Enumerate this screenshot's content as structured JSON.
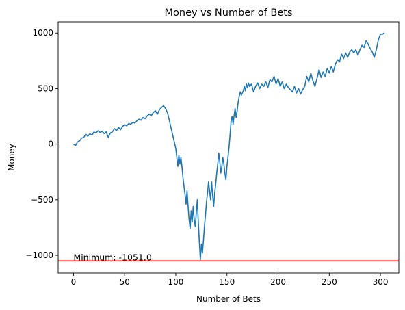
{
  "chart_data": {
    "type": "line",
    "title": "Money vs Number of Bets",
    "xlabel": "Number of Bets",
    "ylabel": "Money",
    "xlim": [
      -15,
      318
    ],
    "ylim": [
      -1160,
      1100
    ],
    "x_ticks": [
      0,
      50,
      100,
      150,
      200,
      250,
      300
    ],
    "x_tick_labels": [
      "0",
      "50",
      "100",
      "150",
      "200",
      "250",
      "300"
    ],
    "y_ticks": [
      -1000,
      -500,
      0,
      500,
      1000
    ],
    "y_tick_labels": [
      "−1000",
      "−500",
      "0",
      "500",
      "1000"
    ],
    "grid": false,
    "series": [
      {
        "color": "#1f77b4",
        "points": [
          [
            0,
            0
          ],
          [
            2,
            -12
          ],
          [
            4,
            20
          ],
          [
            6,
            30
          ],
          [
            8,
            55
          ],
          [
            10,
            60
          ],
          [
            12,
            90
          ],
          [
            14,
            70
          ],
          [
            16,
            95
          ],
          [
            18,
            80
          ],
          [
            20,
            110
          ],
          [
            22,
            100
          ],
          [
            24,
            120
          ],
          [
            26,
            105
          ],
          [
            28,
            115
          ],
          [
            30,
            95
          ],
          [
            32,
            110
          ],
          [
            34,
            60
          ],
          [
            36,
            100
          ],
          [
            38,
            110
          ],
          [
            40,
            140
          ],
          [
            42,
            120
          ],
          [
            44,
            150
          ],
          [
            46,
            130
          ],
          [
            48,
            160
          ],
          [
            50,
            175
          ],
          [
            52,
            165
          ],
          [
            54,
            185
          ],
          [
            56,
            180
          ],
          [
            58,
            195
          ],
          [
            60,
            190
          ],
          [
            62,
            210
          ],
          [
            64,
            225
          ],
          [
            66,
            215
          ],
          [
            68,
            240
          ],
          [
            70,
            230
          ],
          [
            72,
            255
          ],
          [
            74,
            270
          ],
          [
            76,
            255
          ],
          [
            78,
            285
          ],
          [
            80,
            300
          ],
          [
            82,
            270
          ],
          [
            84,
            310
          ],
          [
            86,
            330
          ],
          [
            88,
            345
          ],
          [
            90,
            320
          ],
          [
            92,
            280
          ],
          [
            94,
            200
          ],
          [
            96,
            120
          ],
          [
            98,
            40
          ],
          [
            100,
            -40
          ],
          [
            101,
            -120
          ],
          [
            102,
            -200
          ],
          [
            103,
            -100
          ],
          [
            104,
            -180
          ],
          [
            105,
            -120
          ],
          [
            106,
            -200
          ],
          [
            107,
            -300
          ],
          [
            108,
            -380
          ],
          [
            109,
            -450
          ],
          [
            110,
            -540
          ],
          [
            111,
            -420
          ],
          [
            112,
            -560
          ],
          [
            113,
            -680
          ],
          [
            114,
            -760
          ],
          [
            115,
            -600
          ],
          [
            116,
            -700
          ],
          [
            117,
            -560
          ],
          [
            118,
            -680
          ],
          [
            119,
            -740
          ],
          [
            120,
            -620
          ],
          [
            121,
            -500
          ],
          [
            122,
            -700
          ],
          [
            123,
            -880
          ],
          [
            124,
            -1040
          ],
          [
            125,
            -900
          ],
          [
            126,
            -980
          ],
          [
            127,
            -870
          ],
          [
            128,
            -740
          ],
          [
            129,
            -640
          ],
          [
            130,
            -520
          ],
          [
            131,
            -440
          ],
          [
            132,
            -340
          ],
          [
            133,
            -420
          ],
          [
            134,
            -500
          ],
          [
            135,
            -340
          ],
          [
            136,
            -460
          ],
          [
            137,
            -560
          ],
          [
            138,
            -440
          ],
          [
            139,
            -360
          ],
          [
            140,
            -260
          ],
          [
            141,
            -180
          ],
          [
            142,
            -80
          ],
          [
            143,
            -160
          ],
          [
            144,
            -260
          ],
          [
            145,
            -200
          ],
          [
            146,
            -120
          ],
          [
            147,
            -180
          ],
          [
            148,
            -260
          ],
          [
            149,
            -320
          ],
          [
            150,
            -200
          ],
          [
            151,
            -120
          ],
          [
            152,
            -30
          ],
          [
            153,
            80
          ],
          [
            154,
            200
          ],
          [
            155,
            250
          ],
          [
            156,
            180
          ],
          [
            157,
            260
          ],
          [
            158,
            320
          ],
          [
            159,
            240
          ],
          [
            160,
            300
          ],
          [
            161,
            380
          ],
          [
            162,
            430
          ],
          [
            163,
            470
          ],
          [
            164,
            440
          ],
          [
            165,
            460
          ],
          [
            166,
            480
          ],
          [
            167,
            520
          ],
          [
            168,
            480
          ],
          [
            169,
            540
          ],
          [
            170,
            510
          ],
          [
            171,
            550
          ],
          [
            172,
            520
          ],
          [
            174,
            540
          ],
          [
            176,
            470
          ],
          [
            178,
            520
          ],
          [
            180,
            550
          ],
          [
            182,
            500
          ],
          [
            184,
            540
          ],
          [
            186,
            520
          ],
          [
            188,
            560
          ],
          [
            190,
            510
          ],
          [
            192,
            580
          ],
          [
            194,
            560
          ],
          [
            196,
            610
          ],
          [
            198,
            540
          ],
          [
            200,
            590
          ],
          [
            202,
            520
          ],
          [
            204,
            560
          ],
          [
            206,
            500
          ],
          [
            208,
            540
          ],
          [
            210,
            510
          ],
          [
            212,
            490
          ],
          [
            214,
            470
          ],
          [
            216,
            520
          ],
          [
            218,
            460
          ],
          [
            220,
            500
          ],
          [
            222,
            450
          ],
          [
            224,
            490
          ],
          [
            226,
            520
          ],
          [
            228,
            610
          ],
          [
            230,
            560
          ],
          [
            232,
            640
          ],
          [
            234,
            570
          ],
          [
            236,
            520
          ],
          [
            238,
            590
          ],
          [
            240,
            670
          ],
          [
            242,
            600
          ],
          [
            244,
            650
          ],
          [
            246,
            610
          ],
          [
            248,
            680
          ],
          [
            250,
            640
          ],
          [
            252,
            700
          ],
          [
            254,
            650
          ],
          [
            256,
            720
          ],
          [
            258,
            760
          ],
          [
            260,
            740
          ],
          [
            262,
            810
          ],
          [
            264,
            770
          ],
          [
            266,
            820
          ],
          [
            268,
            780
          ],
          [
            270,
            830
          ],
          [
            272,
            850
          ],
          [
            274,
            820
          ],
          [
            276,
            850
          ],
          [
            278,
            800
          ],
          [
            280,
            850
          ],
          [
            282,
            890
          ],
          [
            284,
            870
          ],
          [
            286,
            930
          ],
          [
            288,
            900
          ],
          [
            290,
            860
          ],
          [
            292,
            830
          ],
          [
            294,
            780
          ],
          [
            296,
            850
          ],
          [
            298,
            940
          ],
          [
            300,
            990
          ],
          [
            302,
            990
          ],
          [
            304,
            1000
          ]
        ]
      }
    ],
    "min_line": {
      "y": -1051.0,
      "color": "#ff0000"
    },
    "annotation": {
      "text": "Minimum: -1051.0",
      "x": 0,
      "y": -1051.0
    }
  }
}
